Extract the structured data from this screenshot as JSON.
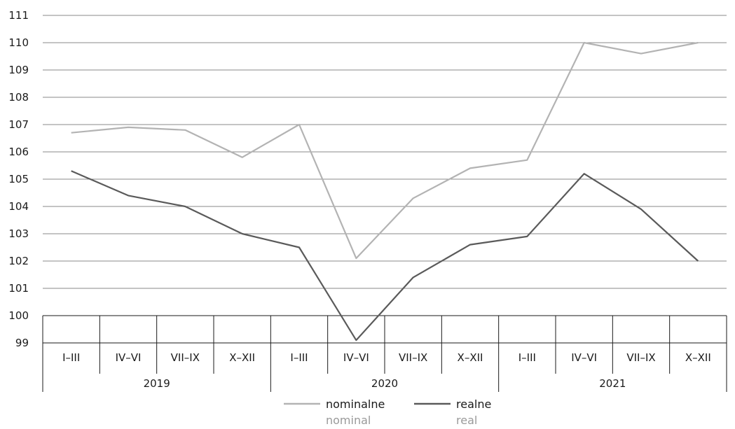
{
  "chart_data": {
    "type": "line",
    "title": "",
    "xlabel": "",
    "ylabel": "",
    "ylim": [
      99,
      111
    ],
    "yticks": [
      99,
      100,
      101,
      102,
      103,
      104,
      105,
      106,
      107,
      108,
      109,
      110,
      111
    ],
    "grid": true,
    "categories": [
      "I–III",
      "IV–VI",
      "VII–IX",
      "X–XII",
      "I–III",
      "IV–VI",
      "VII–IX",
      "X–XII",
      "I–III",
      "IV–VI",
      "VII–IX",
      "X–XII"
    ],
    "years": [
      "2019",
      "2020",
      "2021"
    ],
    "series": [
      {
        "name": "nominalne",
        "name_sub": "nominal",
        "color": "#b3b3b3",
        "values": [
          106.7,
          106.9,
          106.8,
          105.8,
          107.0,
          102.1,
          104.3,
          105.4,
          105.7,
          110.0,
          109.6,
          110.0
        ]
      },
      {
        "name": "realne",
        "name_sub": "real",
        "color": "#5a5a5a",
        "values": [
          105.3,
          104.4,
          104.0,
          103.0,
          102.5,
          99.1,
          101.4,
          102.6,
          102.9,
          105.2,
          103.9,
          102.0
        ]
      }
    ],
    "legend_position": "bottom"
  }
}
